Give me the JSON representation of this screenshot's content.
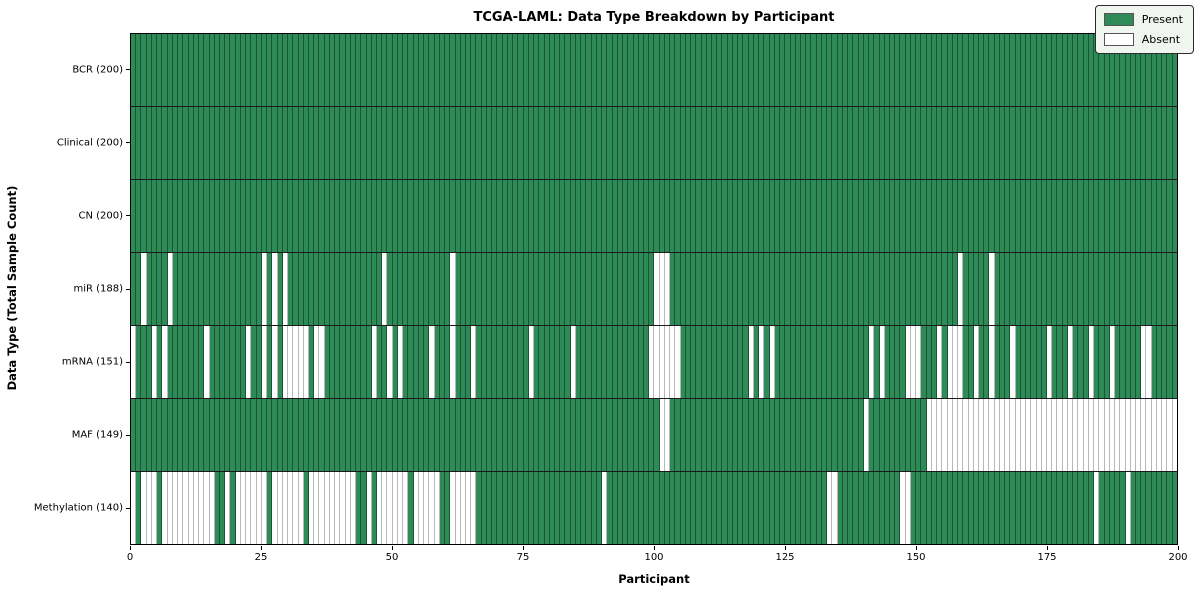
{
  "chart_data": {
    "type": "heatmap",
    "title": "TCGA-LAML: Data Type Breakdown by Participant",
    "xlabel": "Participant",
    "ylabel": "Data Type (Total Sample Count)",
    "n_participants": 200,
    "x_ticks": [
      0,
      25,
      50,
      75,
      100,
      125,
      150,
      175,
      200
    ],
    "grid": false,
    "legend_position": "upper right",
    "states": {
      "present_label": "Present",
      "absent_label": "Absent"
    },
    "colors": {
      "present": "#2e8b57",
      "absent": "#ffffff",
      "present_edge": "rgba(10,40,25,0.55)",
      "absent_edge": "#b8b8b8",
      "row_separator": "#1a1a1a",
      "plot_border": "#000000",
      "legend_bg": "#f0f5f0"
    },
    "rows": [
      {
        "label": "BCR (200)",
        "count": 200,
        "absent": []
      },
      {
        "label": "Clinical (200)",
        "count": 200,
        "absent": []
      },
      {
        "label": "CN (200)",
        "count": 200,
        "absent": []
      },
      {
        "label": "miR (188)",
        "count": 188,
        "absent": [
          2,
          7,
          25,
          27,
          29,
          48,
          61,
          100,
          101,
          102,
          158,
          164
        ]
      },
      {
        "label": "mRNA (151)",
        "count": 151,
        "absent": [
          0,
          4,
          6,
          14,
          22,
          25,
          27,
          29,
          30,
          31,
          32,
          33,
          35,
          36,
          46,
          49,
          51,
          57,
          61,
          65,
          76,
          84,
          99,
          100,
          101,
          102,
          103,
          104,
          118,
          120,
          122,
          141,
          143,
          148,
          149,
          150,
          154,
          156,
          157,
          158,
          161,
          164,
          168,
          175,
          179,
          183,
          187,
          193,
          194
        ]
      },
      {
        "label": "MAF (149)",
        "count": 149,
        "absent": [
          101,
          102,
          140,
          152,
          153,
          154,
          155,
          156,
          157,
          158,
          159,
          160,
          161,
          162,
          163,
          164,
          165,
          166,
          167,
          168,
          169,
          170,
          171,
          172,
          173,
          174,
          175,
          176,
          177,
          178,
          179,
          180,
          181,
          182,
          183,
          184,
          185,
          186,
          187,
          188,
          189,
          190,
          191,
          192,
          193,
          194,
          195,
          196,
          197,
          198,
          199
        ]
      },
      {
        "label": "Methylation (140)",
        "count": 140,
        "absent": [
          0,
          2,
          3,
          4,
          6,
          7,
          8,
          9,
          10,
          11,
          12,
          13,
          14,
          15,
          18,
          20,
          21,
          22,
          23,
          24,
          25,
          27,
          28,
          29,
          30,
          31,
          32,
          34,
          35,
          36,
          37,
          38,
          39,
          40,
          41,
          42,
          45,
          47,
          48,
          49,
          50,
          51,
          52,
          54,
          55,
          56,
          57,
          58,
          61,
          62,
          63,
          64,
          65,
          90,
          133,
          134,
          147,
          148,
          184,
          190
        ]
      }
    ],
    "legend": [
      {
        "label": "Present",
        "color": "#2e8b57"
      },
      {
        "label": "Absent",
        "color": "#ffffff"
      }
    ]
  }
}
